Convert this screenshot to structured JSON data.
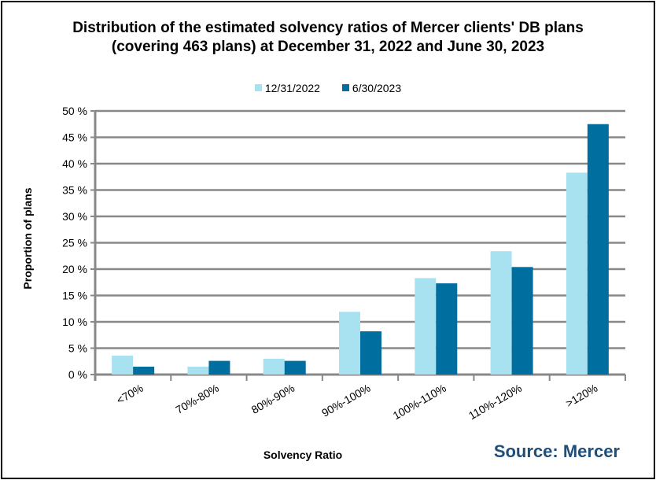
{
  "chart_data": {
    "type": "bar",
    "title_line1": "Distribution  of the estimated  solvency ratios  of Mercer clients' DB plans",
    "title_line2": "(covering 463 plans) at December 31, 2022 and June 30, 2023",
    "xlabel": "Solvency Ratio",
    "ylabel": "Proportion of plans",
    "categories": [
      "<70%",
      "70%-80%",
      "80%-90%",
      "90%-100%",
      "100%-110%",
      "110%-120%",
      ">120%"
    ],
    "series": [
      {
        "name": "12/31/2022",
        "color": "#a8e2f0",
        "values": [
          3.6,
          1.5,
          3.0,
          11.9,
          18.3,
          23.4,
          38.3
        ]
      },
      {
        "name": "6/30/2023",
        "color": "#006e9f",
        "values": [
          1.5,
          2.6,
          2.6,
          8.2,
          17.3,
          20.4,
          47.5
        ]
      }
    ],
    "ylim": [
      0,
      50
    ],
    "yticks": [
      "0 %",
      "5 %",
      "10 %",
      "15 %",
      "20 %",
      "25 %",
      "30 %",
      "35 %",
      "40 %",
      "45 %",
      "50 %"
    ],
    "grid": true,
    "legend": "top-center",
    "source": "Source: Mercer"
  }
}
